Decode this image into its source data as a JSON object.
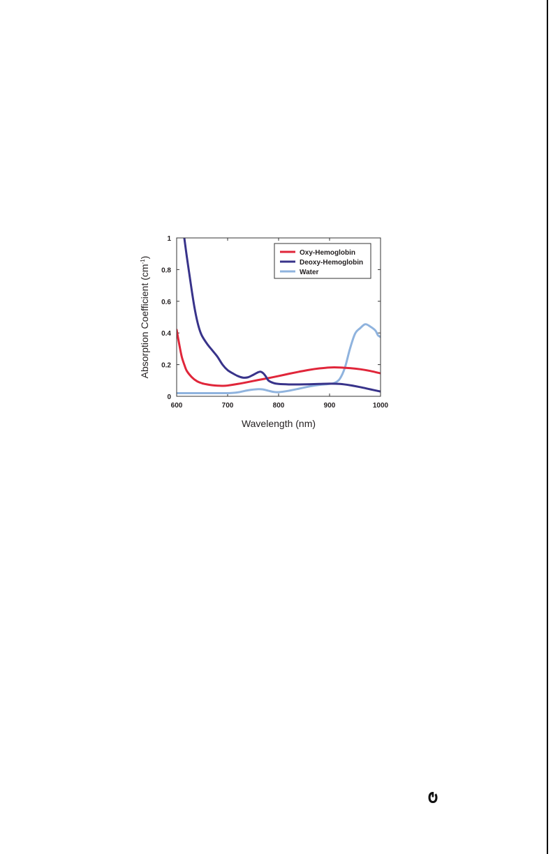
{
  "chart_data": {
    "type": "line",
    "title": "",
    "xlabel": "Wavelength (nm)",
    "ylabel_main": "Absorption Coefficient (cm",
    "ylabel_sup": "-1",
    "ylabel_close": ")",
    "xlim": [
      600,
      1000
    ],
    "ylim": [
      0,
      1
    ],
    "xticks": [
      600,
      700,
      800,
      900,
      1000
    ],
    "yticks": [
      0,
      0.2,
      0.4,
      0.6,
      0.8,
      1
    ],
    "xtick_labels": [
      "600",
      "700",
      "800",
      "900",
      "1000"
    ],
    "ytick_labels": [
      "0",
      "0.2",
      "0.4",
      "0.6",
      "0.8",
      "1"
    ],
    "grid": false,
    "legend_position": "top-right",
    "series": [
      {
        "name": "Oxy-Hemoglobin",
        "color": "#e0263a",
        "x": [
          600,
          605,
          610,
          615,
          620,
          630,
          640,
          650,
          660,
          670,
          680,
          690,
          700,
          720,
          740,
          760,
          780,
          800,
          820,
          840,
          860,
          880,
          900,
          920,
          940,
          960,
          980,
          1000
        ],
        "y": [
          0.42,
          0.33,
          0.25,
          0.2,
          0.16,
          0.12,
          0.095,
          0.082,
          0.075,
          0.07,
          0.067,
          0.066,
          0.068,
          0.078,
          0.09,
          0.103,
          0.115,
          0.128,
          0.142,
          0.155,
          0.167,
          0.176,
          0.182,
          0.182,
          0.178,
          0.171,
          0.16,
          0.145
        ]
      },
      {
        "name": "Deoxy-Hemoglobin",
        "color": "#38338a",
        "x": [
          615,
          620,
          625,
          630,
          635,
          640,
          645,
          650,
          660,
          670,
          680,
          690,
          700,
          710,
          720,
          730,
          740,
          750,
          760,
          765,
          770,
          775,
          780,
          790,
          800,
          820,
          840,
          860,
          880,
          900,
          920,
          940,
          960,
          980,
          1000
        ],
        "y": [
          1.0,
          0.88,
          0.77,
          0.66,
          0.56,
          0.48,
          0.42,
          0.38,
          0.33,
          0.29,
          0.25,
          0.2,
          0.165,
          0.145,
          0.128,
          0.118,
          0.12,
          0.135,
          0.152,
          0.155,
          0.145,
          0.125,
          0.1,
          0.084,
          0.078,
          0.075,
          0.075,
          0.076,
          0.078,
          0.08,
          0.078,
          0.07,
          0.058,
          0.044,
          0.03
        ]
      },
      {
        "name": "Water",
        "color": "#8fb3de",
        "x": [
          600,
          650,
          700,
          720,
          740,
          760,
          770,
          780,
          790,
          800,
          820,
          840,
          860,
          880,
          900,
          910,
          920,
          930,
          940,
          950,
          960,
          970,
          980,
          990,
          995,
          1000
        ],
        "y": [
          0.02,
          0.02,
          0.02,
          0.025,
          0.038,
          0.045,
          0.043,
          0.035,
          0.028,
          0.026,
          0.035,
          0.048,
          0.062,
          0.072,
          0.078,
          0.085,
          0.11,
          0.18,
          0.3,
          0.395,
          0.43,
          0.455,
          0.44,
          0.415,
          0.385,
          0.375
        ]
      }
    ]
  }
}
